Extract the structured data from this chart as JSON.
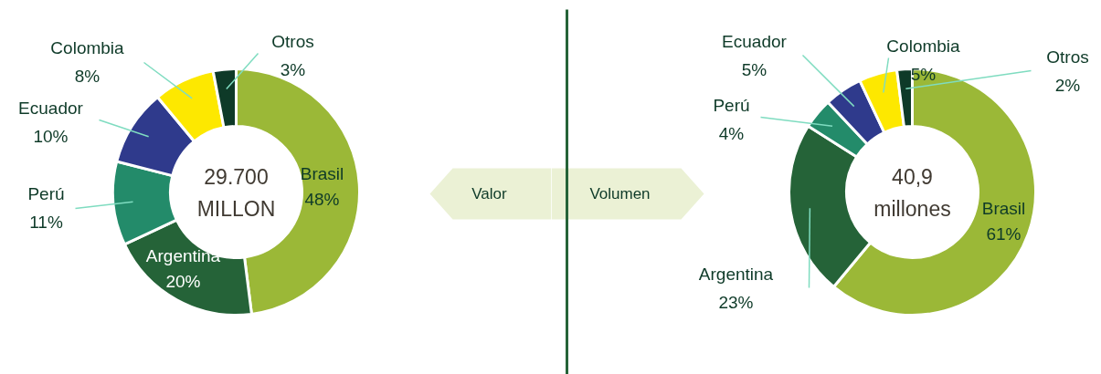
{
  "chart_data": [
    {
      "type": "donut",
      "categories": [
        "Brasil",
        "Argentina",
        "Perú",
        "Ecuador",
        "Colombia",
        "Otros"
      ],
      "values": [
        48,
        20,
        11,
        10,
        8,
        3
      ],
      "value_labels": [
        "48%",
        "20%",
        "11%",
        "10%",
        "8%",
        "3%"
      ],
      "colors": [
        "#9bb837",
        "#256338",
        "#238b6a",
        "#2f3a8c",
        "#fde800",
        "#0e3a28"
      ],
      "annotations": [
        "29.700",
        "MILLON",
        "Valor"
      ]
    },
    {
      "type": "donut",
      "categories": [
        "Brasil",
        "Argentina",
        "Perú",
        "Ecuador",
        "Colombia",
        "Otros"
      ],
      "values": [
        61,
        23,
        4,
        5,
        5,
        2
      ],
      "value_labels": [
        "61%",
        "23%",
        "4%",
        "5%",
        "5%",
        "2%"
      ],
      "colors": [
        "#9bb837",
        "#256338",
        "#238b6a",
        "#2f3a8c",
        "#fde800",
        "#0e3a28"
      ],
      "annotations": [
        "40,9",
        "millones",
        "Volumen"
      ]
    }
  ]
}
